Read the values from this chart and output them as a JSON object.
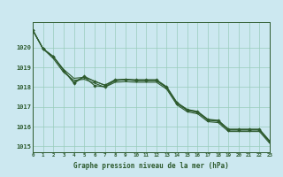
{
  "background_color": "#cce8f0",
  "plot_bg_color": "#cce8f0",
  "grid_color": "#99ccbb",
  "line_color": "#2d5a2d",
  "xlabel": "Graphe pression niveau de la mer (hPa)",
  "xlim": [
    0,
    23
  ],
  "ylim": [
    1014.7,
    1021.3
  ],
  "yticks": [
    1015,
    1016,
    1017,
    1018,
    1019,
    1020
  ],
  "xticks": [
    0,
    1,
    2,
    3,
    4,
    5,
    6,
    7,
    8,
    9,
    10,
    11,
    12,
    13,
    14,
    15,
    16,
    17,
    18,
    19,
    20,
    21,
    22,
    23
  ],
  "hours": [
    0,
    1,
    2,
    3,
    4,
    5,
    6,
    7,
    8,
    9,
    10,
    11,
    12,
    13,
    14,
    15,
    16,
    17,
    18,
    19,
    20,
    21,
    22,
    23
  ],
  "line1": [
    1020.9,
    1019.95,
    1019.55,
    1018.85,
    1018.3,
    1018.5,
    1018.3,
    1018.1,
    1018.35,
    1018.4,
    1018.35,
    1018.35,
    1018.35,
    1018.0,
    1017.2,
    1016.85,
    1016.75,
    1016.35,
    1016.3,
    1015.85,
    1015.85,
    1015.85,
    1015.85,
    1015.25
  ],
  "line2": [
    1020.9,
    1019.95,
    1019.55,
    1018.9,
    1018.27,
    1018.52,
    1018.1,
    1018.05,
    1018.32,
    1018.38,
    1018.33,
    1018.33,
    1018.33,
    1017.97,
    1017.12,
    1016.72,
    1016.62,
    1016.22,
    1016.12,
    1015.77,
    1015.77,
    1015.77,
    1015.77,
    1015.2
  ],
  "line3_smooth": [
    1020.9,
    1019.95,
    1019.55,
    1018.9,
    1018.3,
    1018.5,
    1018.3,
    1018.1,
    1018.35,
    1018.4,
    1018.35,
    1018.35,
    1018.35,
    1018.0,
    1017.2,
    1016.85,
    1016.75,
    1016.35,
    1016.3,
    1015.85,
    1015.85,
    1015.85,
    1015.85,
    1015.25
  ],
  "line4_smooth": [
    1020.9,
    1019.95,
    1019.55,
    1018.9,
    1018.3,
    1018.5,
    1018.3,
    1018.1,
    1018.35,
    1018.4,
    1018.35,
    1018.35,
    1018.35,
    1018.0,
    1017.2,
    1016.85,
    1016.75,
    1016.35,
    1016.3,
    1015.85,
    1015.85,
    1015.85,
    1015.85,
    1015.25
  ]
}
